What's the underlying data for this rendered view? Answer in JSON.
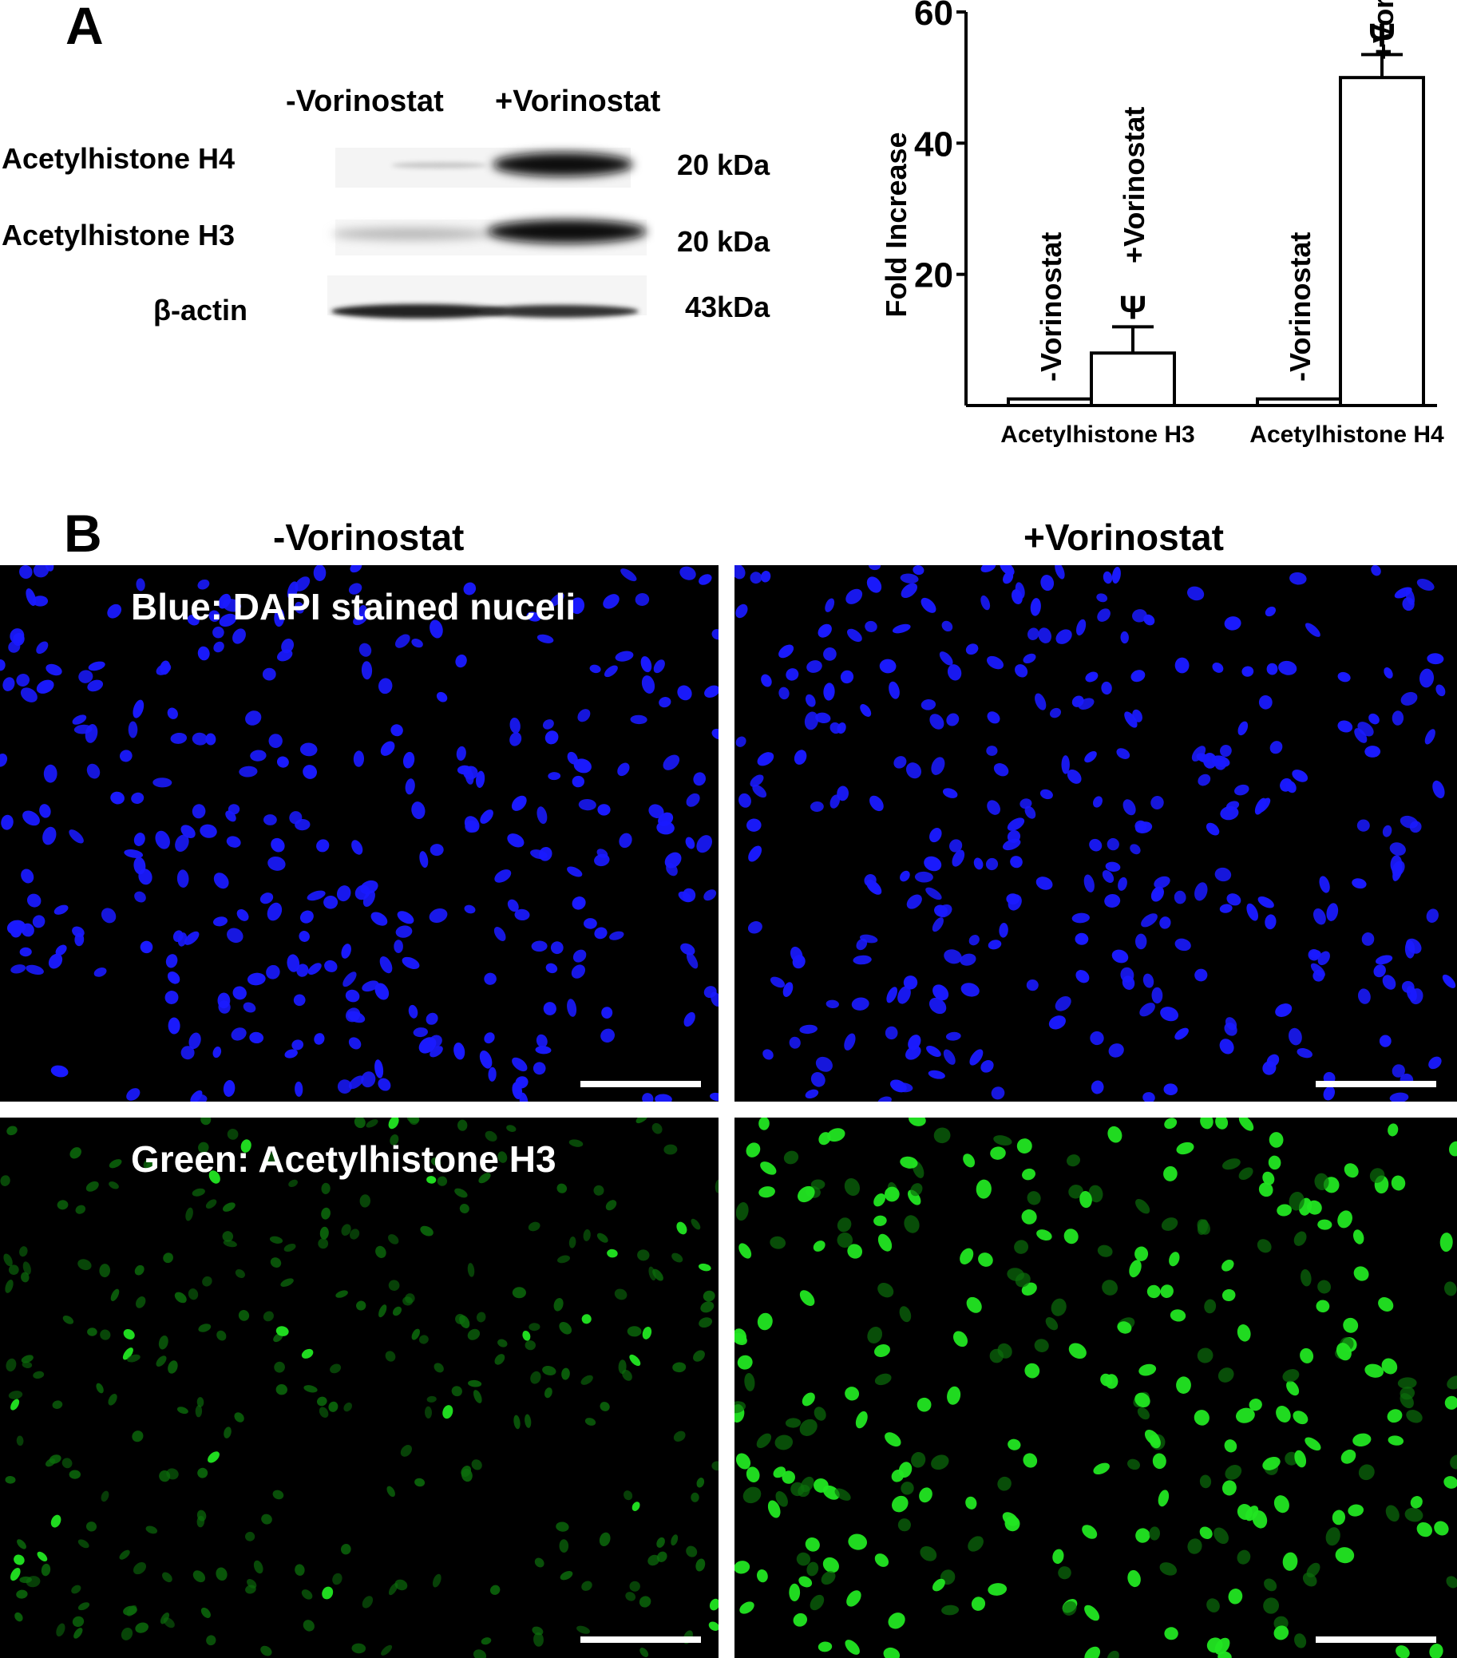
{
  "panel_a": {
    "letter": "A",
    "blot": {
      "columns": [
        "-Vorinostat",
        "+Vorinostat"
      ],
      "rows": [
        {
          "label": "Acetylhistone H4",
          "mw": "20 kDa"
        },
        {
          "label": "Acetylhistone H3",
          "mw": "20 kDa"
        },
        {
          "label": "β-actin",
          "mw": "43kDa"
        }
      ]
    }
  },
  "chart_data": {
    "type": "bar",
    "title": "",
    "xlabel": "",
    "ylabel": "Fold Increase",
    "ylim": [
      0,
      60
    ],
    "yticks": [
      "20",
      "40",
      "60"
    ],
    "groups": [
      "Acetylhistone H3",
      "Acetylhistone H4"
    ],
    "bars": [
      {
        "group": "Acetylhistone H3",
        "label": "-Vorinostat",
        "value": 1,
        "error": 0,
        "marker": ""
      },
      {
        "group": "Acetylhistone H3",
        "label": "+Vorinostat",
        "value": 8,
        "error": 4,
        "marker": "Ψ"
      },
      {
        "group": "Acetylhistone H4",
        "label": "-Vorinostat",
        "value": 1,
        "error": 0,
        "marker": ""
      },
      {
        "group": "Acetylhistone H4",
        "label": "+Vorinostat",
        "value": 50,
        "error": 3.5,
        "marker": "Ψ"
      }
    ],
    "grid": false,
    "bar_fill": "#ffffff",
    "bar_stroke": "#000000"
  },
  "panel_b": {
    "letter": "B",
    "columns": [
      "-Vorinostat",
      "+Vorinostat"
    ],
    "captions": {
      "blue": "Blue: DAPI stained nuceli",
      "green": "Green: Acetylhistone H3"
    },
    "colors": {
      "dapi": "#1a1aff",
      "acetyl_bright": "#22e622",
      "acetyl_dim": "#0c6e0c",
      "background": "#000000",
      "scalebar": "#ffffff"
    }
  }
}
